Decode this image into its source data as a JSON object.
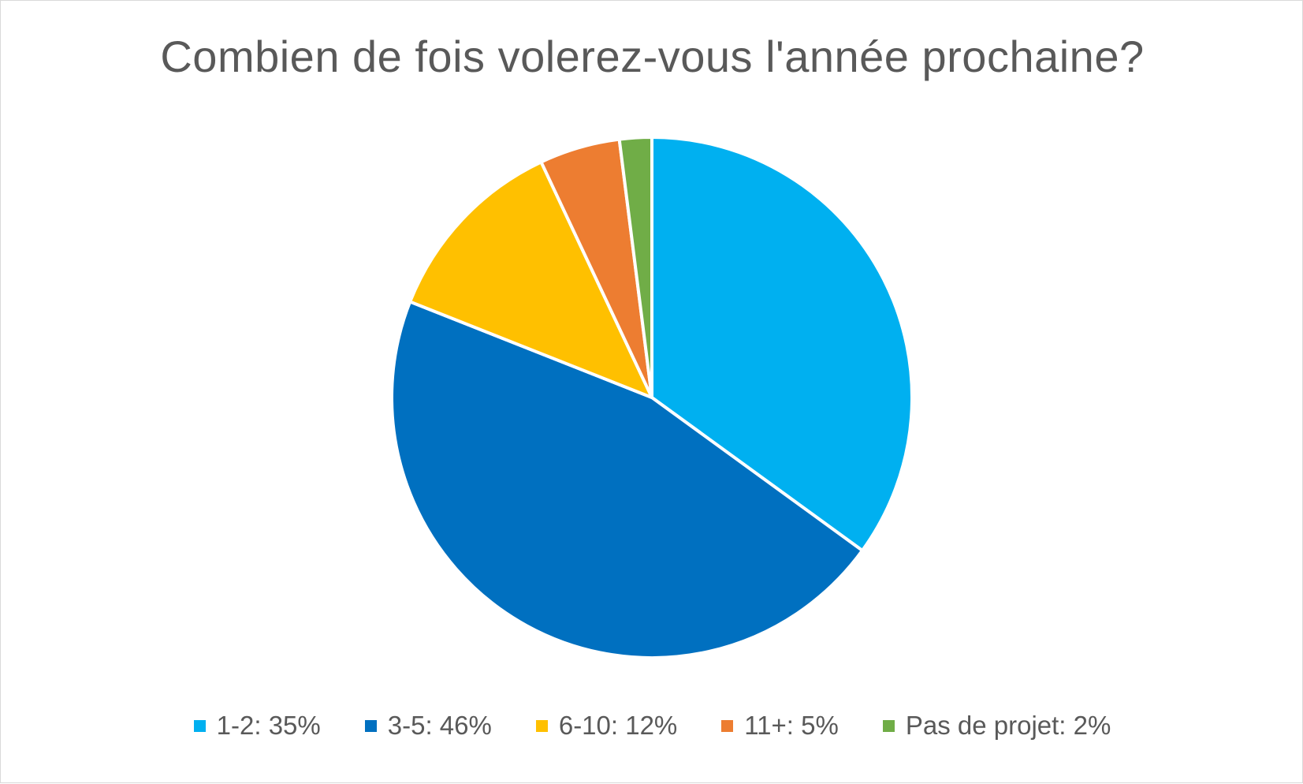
{
  "chart_data": {
    "type": "pie",
    "title": "Combien de fois volerez-vous l'année prochaine?",
    "categories": [
      "1-2",
      "3-5",
      "6-10",
      "11+",
      "Pas de projet"
    ],
    "values": [
      35,
      46,
      12,
      5,
      2
    ],
    "unit": "%",
    "colors": [
      "#00b0f0",
      "#0070c0",
      "#ffc000",
      "#ed7d31",
      "#70ad47"
    ],
    "legend_labels": [
      "1-2: 35%",
      "3-5: 46%",
      "6-10: 12%",
      "11+: 5%",
      "Pas de projet: 2%"
    ],
    "legend_position": "bottom",
    "start_angle": "12 o'clock",
    "direction": "clockwise"
  }
}
